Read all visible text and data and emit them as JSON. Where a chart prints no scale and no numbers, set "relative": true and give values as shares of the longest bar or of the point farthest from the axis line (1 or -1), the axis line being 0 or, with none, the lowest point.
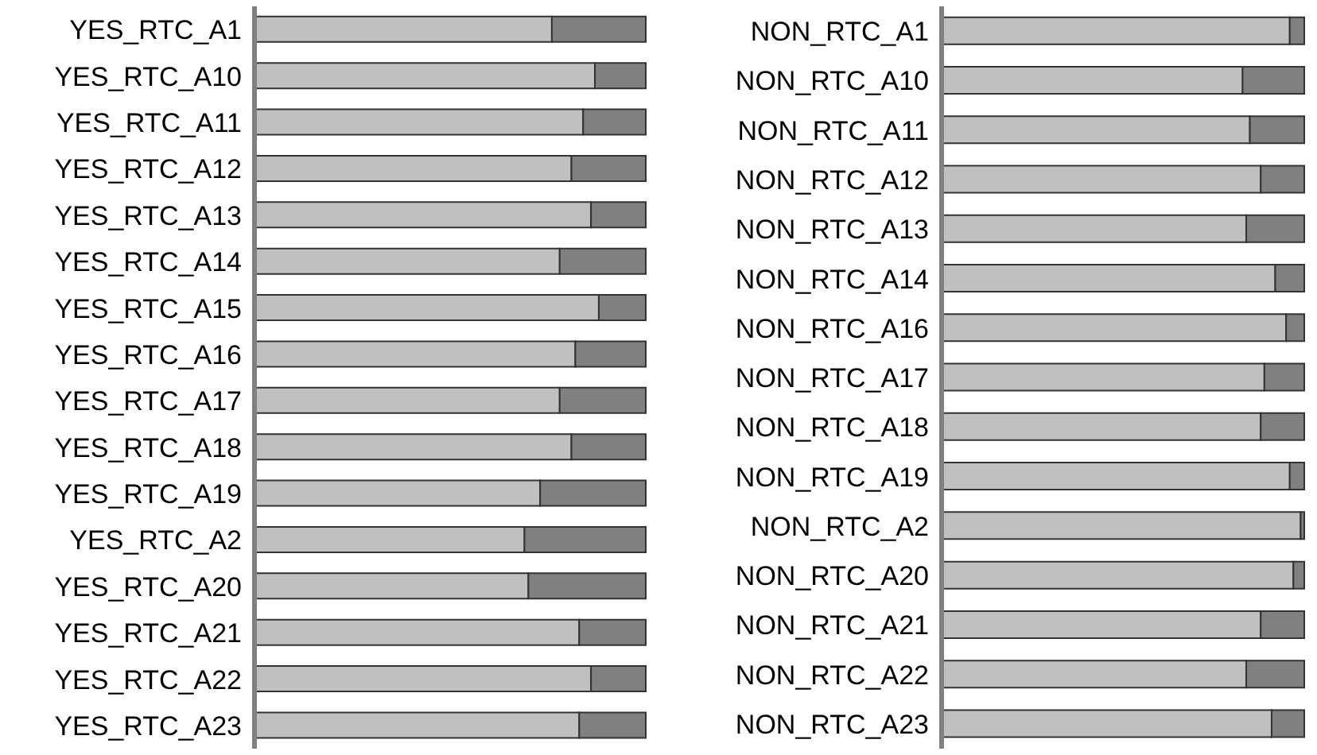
{
  "chart_data": [
    {
      "type": "bar",
      "orientation": "horizontal",
      "stacked": true,
      "relative": true,
      "legend": false,
      "categories": [
        "YES_RTC_A1",
        "YES_RTC_A10",
        "YES_RTC_A11",
        "YES_RTC_A12",
        "YES_RTC_A13",
        "YES_RTC_A14",
        "YES_RTC_A15",
        "YES_RTC_A16",
        "YES_RTC_A17",
        "YES_RTC_A18",
        "YES_RTC_A19",
        "YES_RTC_A2",
        "YES_RTC_A20",
        "YES_RTC_A21",
        "YES_RTC_A22",
        "YES_RTC_A23"
      ],
      "series": [
        {
          "color": "#c0c0c0",
          "values": [
            0.76,
            0.87,
            0.84,
            0.81,
            0.86,
            0.78,
            0.88,
            0.82,
            0.78,
            0.81,
            0.73,
            0.69,
            0.7,
            0.83,
            0.86,
            0.83
          ]
        },
        {
          "color": "#808080",
          "values": [
            0.24,
            0.13,
            0.16,
            0.19,
            0.14,
            0.22,
            0.12,
            0.18,
            0.22,
            0.19,
            0.27,
            0.31,
            0.3,
            0.17,
            0.14,
            0.17
          ]
        }
      ]
    },
    {
      "type": "bar",
      "orientation": "horizontal",
      "stacked": true,
      "relative": true,
      "legend": false,
      "categories": [
        "NON_RTC_A1",
        "NON_RTC_A10",
        "NON_RTC_A11",
        "NON_RTC_A12",
        "NON_RTC_A13",
        "NON_RTC_A14",
        "NON_RTC_A16",
        "NON_RTC_A17",
        "NON_RTC_A18",
        "NON_RTC_A19",
        "NON_RTC_A2",
        "NON_RTC_A20",
        "NON_RTC_A21",
        "NON_RTC_A22",
        "NON_RTC_A23"
      ],
      "series": [
        {
          "color": "#c0c0c0",
          "values": [
            0.96,
            0.83,
            0.85,
            0.88,
            0.84,
            0.92,
            0.95,
            0.89,
            0.88,
            0.96,
            0.99,
            0.97,
            0.88,
            0.84,
            0.91
          ]
        },
        {
          "color": "#808080",
          "values": [
            0.04,
            0.17,
            0.15,
            0.12,
            0.16,
            0.08,
            0.05,
            0.11,
            0.12,
            0.04,
            0.01,
            0.03,
            0.12,
            0.16,
            0.09
          ]
        }
      ]
    }
  ]
}
